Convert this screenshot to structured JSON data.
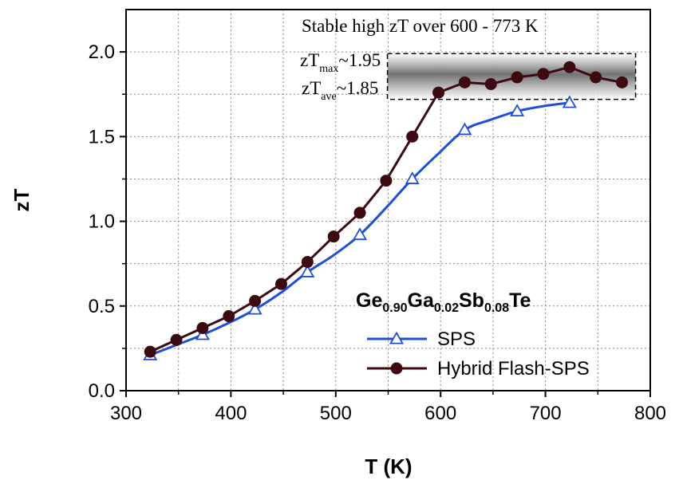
{
  "chart_data": {
    "type": "line",
    "xlabel": "T (K)",
    "ylabel": "zT",
    "xlim": [
      300,
      800
    ],
    "ylim": [
      0,
      2.25
    ],
    "xticks": [
      300,
      400,
      500,
      600,
      700,
      800
    ],
    "yticks": [
      0.0,
      0.5,
      1.0,
      1.5,
      2.0
    ],
    "grid": true,
    "legend": {
      "position": "bottom-right",
      "title_parts": [
        {
          "text": "Ge",
          "sub": false
        },
        {
          "text": "0.90",
          "sub": true
        },
        {
          "text": "Ga",
          "sub": false
        },
        {
          "text": "0.02",
          "sub": true
        },
        {
          "text": "Sb",
          "sub": false
        },
        {
          "text": "0.08",
          "sub": true
        },
        {
          "text": "Te",
          "sub": false
        }
      ]
    },
    "series": [
      {
        "name": "SPS",
        "color": "#1f4fd8",
        "marker": "open-triangle",
        "x": [
          323,
          373,
          423,
          473,
          523,
          573,
          623,
          673,
          723
        ],
        "y": [
          0.21,
          0.33,
          0.48,
          0.7,
          0.92,
          1.25,
          1.54,
          1.65,
          1.7
        ],
        "curve_x": [
          323,
          348,
          373,
          398,
          423,
          448,
          473,
          498,
          523,
          548,
          573,
          598,
          623,
          648,
          673,
          698,
          723
        ],
        "curve_y": [
          0.21,
          0.27,
          0.33,
          0.4,
          0.48,
          0.58,
          0.7,
          0.8,
          0.92,
          1.08,
          1.25,
          1.4,
          1.54,
          1.6,
          1.65,
          1.68,
          1.7
        ]
      },
      {
        "name": "Hybrid Flash-SPS",
        "color": "#3d0a12",
        "marker": "filled-circle",
        "x": [
          323,
          348,
          373,
          398,
          423,
          448,
          473,
          498,
          523,
          548,
          573,
          598,
          623,
          648,
          673,
          698,
          723,
          748,
          773
        ],
        "y": [
          0.23,
          0.3,
          0.37,
          0.44,
          0.53,
          0.63,
          0.76,
          0.91,
          1.05,
          1.24,
          1.5,
          1.76,
          1.82,
          1.81,
          1.85,
          1.87,
          1.91,
          1.85,
          1.82
        ]
      }
    ],
    "annotations": {
      "top_text": "Stable high zT over 600 - 773 K",
      "zt_max_base": "zT",
      "zt_max_sub": "max",
      "zt_max_value": "~1.95",
      "zt_ave_base": "zT",
      "zt_ave_sub": "ave",
      "zt_ave_value": "~1.85",
      "highlight_x": [
        598,
        786
      ],
      "highlight_y": [
        1.72,
        1.99
      ]
    }
  }
}
